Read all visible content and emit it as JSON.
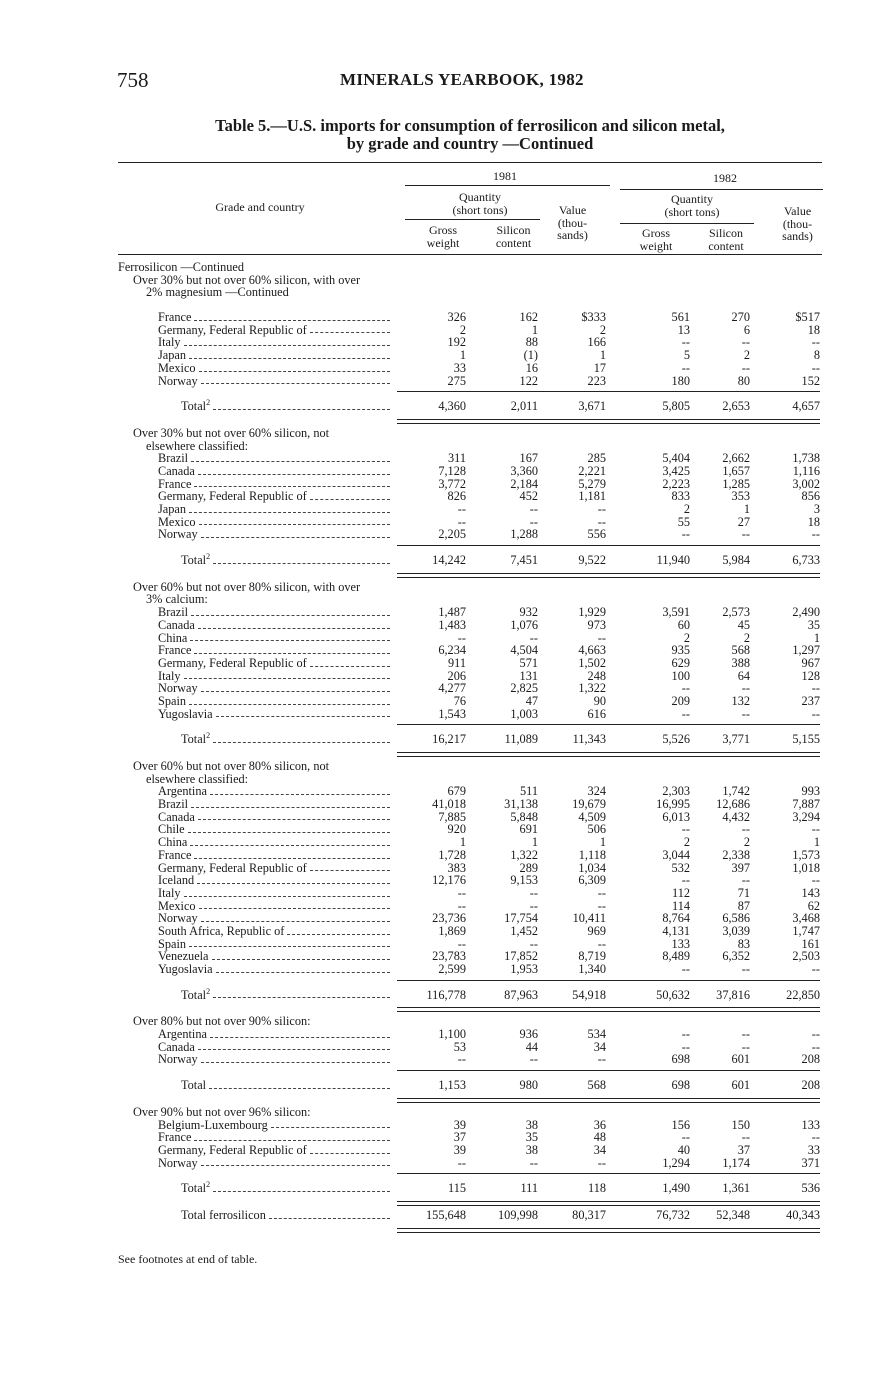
{
  "page_number": "758",
  "running_head": "MINERALS YEARBOOK, 1982",
  "title_line1": "Table 5.—U.S. imports for consumption of ferrosilicon and silicon metal,",
  "title_line2": "by grade and country —Continued",
  "header": {
    "grade_and_country": "Grade and country",
    "year1": "1981",
    "year2": "1982",
    "quantity": "Quantity",
    "short_tons": "(short tons)",
    "value": "Value",
    "thou": "(thou-",
    "sands": "sands)",
    "gross": "Gross",
    "weight": "weight",
    "silicon": "Silicon",
    "content": "content"
  },
  "group_heading": "Ferrosilicon —Continued",
  "sections": [
    {
      "heading": [
        "Over 30% but not over 60% silicon, with over",
        "2% magnesium —Continued"
      ],
      "rows": [
        [
          "France",
          "326",
          "162",
          "$333",
          "561",
          "270",
          "$517"
        ],
        [
          "Germany, Federal Republic of",
          "2",
          "1",
          "2",
          "13",
          "6",
          "18"
        ],
        [
          "Italy",
          "192",
          "88",
          "166",
          "--",
          "--",
          "--"
        ],
        [
          "Japan",
          "1",
          "(1)",
          "1",
          "5",
          "2",
          "8"
        ],
        [
          "Mexico",
          "33",
          "16",
          "17",
          "--",
          "--",
          "--"
        ],
        [
          "Norway",
          "275",
          "122",
          "223",
          "180",
          "80",
          "152"
        ]
      ],
      "total": {
        "label": "Total",
        "footnote": "2",
        "values": [
          "4,360",
          "2,011",
          "3,671",
          "5,805",
          "2,653",
          "4,657"
        ]
      }
    },
    {
      "heading": [
        "Over 30% but not over 60% silicon, not",
        "elsewhere classified:"
      ],
      "rows": [
        [
          "Brazil",
          "311",
          "167",
          "285",
          "5,404",
          "2,662",
          "1,738"
        ],
        [
          "Canada",
          "7,128",
          "3,360",
          "2,221",
          "3,425",
          "1,657",
          "1,116"
        ],
        [
          "France",
          "3,772",
          "2,184",
          "5,279",
          "2,223",
          "1,285",
          "3,002"
        ],
        [
          "Germany, Federal Republic of",
          "826",
          "452",
          "1,181",
          "833",
          "353",
          "856"
        ],
        [
          "Japan",
          "--",
          "--",
          "--",
          "2",
          "1",
          "3"
        ],
        [
          "Mexico",
          "--",
          "--",
          "--",
          "55",
          "27",
          "18"
        ],
        [
          "Norway",
          "2,205",
          "1,288",
          "556",
          "--",
          "--",
          "--"
        ]
      ],
      "total": {
        "label": "Total",
        "footnote": "2",
        "values": [
          "14,242",
          "7,451",
          "9,522",
          "11,940",
          "5,984",
          "6,733"
        ]
      }
    },
    {
      "heading": [
        "Over 60% but not over 80% silicon, with over",
        "3% calcium:"
      ],
      "rows": [
        [
          "Brazil",
          "1,487",
          "932",
          "1,929",
          "3,591",
          "2,573",
          "2,490"
        ],
        [
          "Canada",
          "1,483",
          "1,076",
          "973",
          "60",
          "45",
          "35"
        ],
        [
          "China",
          "--",
          "--",
          "--",
          "2",
          "2",
          "1"
        ],
        [
          "France",
          "6,234",
          "4,504",
          "4,663",
          "935",
          "568",
          "1,297"
        ],
        [
          "Germany, Federal Republic of",
          "911",
          "571",
          "1,502",
          "629",
          "388",
          "967"
        ],
        [
          "Italy",
          "206",
          "131",
          "248",
          "100",
          "64",
          "128"
        ],
        [
          "Norway",
          "4,277",
          "2,825",
          "1,322",
          "--",
          "--",
          "--"
        ],
        [
          "Spain",
          "76",
          "47",
          "90",
          "209",
          "132",
          "237"
        ],
        [
          "Yugoslavia",
          "1,543",
          "1,003",
          "616",
          "--",
          "--",
          "--"
        ]
      ],
      "total": {
        "label": "Total",
        "footnote": "2",
        "values": [
          "16,217",
          "11,089",
          "11,343",
          "5,526",
          "3,771",
          "5,155"
        ]
      }
    },
    {
      "heading": [
        "Over 60% but not over 80% silicon, not",
        "elsewhere classified:"
      ],
      "rows": [
        [
          "Argentina",
          "679",
          "511",
          "324",
          "2,303",
          "1,742",
          "993"
        ],
        [
          "Brazil",
          "41,018",
          "31,138",
          "19,679",
          "16,995",
          "12,686",
          "7,887"
        ],
        [
          "Canada",
          "7,885",
          "5,848",
          "4,509",
          "6,013",
          "4,432",
          "3,294"
        ],
        [
          "Chile",
          "920",
          "691",
          "506",
          "--",
          "--",
          "--"
        ],
        [
          "China",
          "1",
          "1",
          "1",
          "2",
          "2",
          "1"
        ],
        [
          "France",
          "1,728",
          "1,322",
          "1,118",
          "3,044",
          "2,338",
          "1,573"
        ],
        [
          "Germany, Federal Republic of",
          "383",
          "289",
          "1,034",
          "532",
          "397",
          "1,018"
        ],
        [
          "Iceland",
          "12,176",
          "9,153",
          "6,309",
          "--",
          "--",
          "--"
        ],
        [
          "Italy",
          "--",
          "--",
          "--",
          "112",
          "71",
          "143"
        ],
        [
          "Mexico",
          "--",
          "--",
          "--",
          "114",
          "87",
          "62"
        ],
        [
          "Norway",
          "23,736",
          "17,754",
          "10,411",
          "8,764",
          "6,586",
          "3,468"
        ],
        [
          "South Africa, Republic of",
          "1,869",
          "1,452",
          "969",
          "4,131",
          "3,039",
          "1,747"
        ],
        [
          "Spain",
          "--",
          "--",
          "--",
          "133",
          "83",
          "161"
        ],
        [
          "Venezuela",
          "23,783",
          "17,852",
          "8,719",
          "8,489",
          "6,352",
          "2,503"
        ],
        [
          "Yugoslavia",
          "2,599",
          "1,953",
          "1,340",
          "--",
          "--",
          "--"
        ]
      ],
      "total": {
        "label": "Total",
        "footnote": "2",
        "values": [
          "116,778",
          "87,963",
          "54,918",
          "50,632",
          "37,816",
          "22,850"
        ]
      }
    },
    {
      "heading": [
        "Over 80% but not over 90% silicon:"
      ],
      "rows": [
        [
          "Argentina",
          "1,100",
          "936",
          "534",
          "--",
          "--",
          "--"
        ],
        [
          "Canada",
          "53",
          "44",
          "34",
          "--",
          "--",
          "--"
        ],
        [
          "Norway",
          "--",
          "--",
          "--",
          "698",
          "601",
          "208"
        ]
      ],
      "total": {
        "label": "Total",
        "footnote": "",
        "values": [
          "1,153",
          "980",
          "568",
          "698",
          "601",
          "208"
        ]
      }
    },
    {
      "heading": [
        "Over 90% but not over 96% silicon:"
      ],
      "rows": [
        [
          "Belgium-Luxembourg",
          "39",
          "38",
          "36",
          "156",
          "150",
          "133"
        ],
        [
          "France",
          "37",
          "35",
          "48",
          "--",
          "--",
          "--"
        ],
        [
          "Germany, Federal Republic of",
          "39",
          "38",
          "34",
          "40",
          "37",
          "33"
        ],
        [
          "Norway",
          "--",
          "--",
          "--",
          "1,294",
          "1,174",
          "371"
        ]
      ],
      "total": {
        "label": "Total",
        "footnote": "2",
        "values": [
          "115",
          "111",
          "118",
          "1,490",
          "1,361",
          "536"
        ]
      }
    }
  ],
  "grand_total": {
    "label": "Total ferrosilicon",
    "values": [
      "155,648",
      "109,998",
      "80,317",
      "76,732",
      "52,348",
      "40,343"
    ]
  },
  "footnote": "See footnotes at end of table."
}
